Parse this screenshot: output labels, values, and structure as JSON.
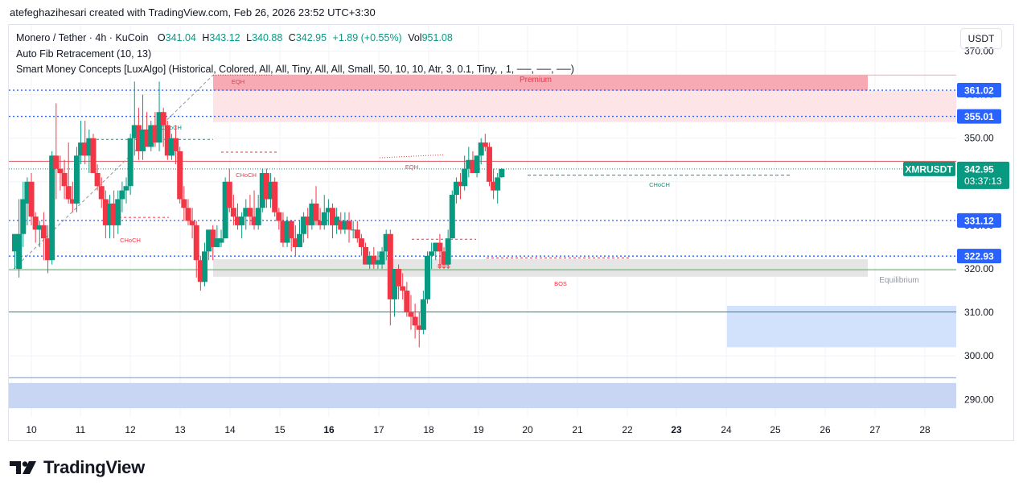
{
  "caption": "atefeghazihesari created with TradingView.com, Feb 26, 2026 23:52 UTC+3:30",
  "legend": {
    "symbol": "Monero / Tether · 4h · KuCoin",
    "o_label": "O",
    "o_value": "341.04",
    "h_label": "H",
    "h_value": "343.12",
    "l_label": "L",
    "l_value": "340.88",
    "c_label": "C",
    "c_value": "342.95",
    "change": "+1.89 (+0.55%)",
    "vol_label": "Vol",
    "vol_value": "951.08",
    "indicator1": "Auto Fib Retracement (10, 13)",
    "indicator2": "Smart Money Concepts [LuxAlgo] (Historical, Colored, All, All, Tiny, All, All, Small, 50, 10, 10, Atr, 3, 0.1, Tiny, , 1, ──, ──, ──)"
  },
  "currency": "USDT",
  "brand": "TradingView",
  "colors": {
    "up": "#089981",
    "down": "#f23645",
    "text": "#131722",
    "grid": "#f0f3fa",
    "blue": "#2962ff"
  },
  "chart_data": {
    "type": "candlestick",
    "symbol": "XMRUSDT",
    "timeframe": "4h",
    "ylim": [
      286,
      376
    ],
    "y_ticks": [
      290,
      300,
      310,
      320,
      330,
      340,
      350,
      360,
      370
    ],
    "y_tick_labels": [
      "290.00",
      "300.00",
      "310.00",
      "320.00",
      "330.00",
      "340.00",
      "350.00",
      "360.00",
      "370.00"
    ],
    "x_labels": [
      {
        "text": "10",
        "bold": false
      },
      {
        "text": "11",
        "bold": false
      },
      {
        "text": "12",
        "bold": false
      },
      {
        "text": "13",
        "bold": false
      },
      {
        "text": "14",
        "bold": false
      },
      {
        "text": "15",
        "bold": false
      },
      {
        "text": "16",
        "bold": true
      },
      {
        "text": "17",
        "bold": false
      },
      {
        "text": "18",
        "bold": false
      },
      {
        "text": "19",
        "bold": false
      },
      {
        "text": "20",
        "bold": false
      },
      {
        "text": "21",
        "bold": false
      },
      {
        "text": "22",
        "bold": false
      },
      {
        "text": "23",
        "bold": true
      },
      {
        "text": "24",
        "bold": false
      },
      {
        "text": "25",
        "bold": false
      },
      {
        "text": "26",
        "bold": false
      },
      {
        "text": "27",
        "bold": false
      },
      {
        "text": "28",
        "bold": false
      }
    ],
    "candles": [
      {
        "o": 324,
        "h": 328,
        "l": 320,
        "c": 328
      },
      {
        "o": 320,
        "h": 336,
        "l": 318,
        "c": 328
      },
      {
        "o": 328,
        "h": 340,
        "l": 325,
        "c": 336
      },
      {
        "o": 335,
        "h": 341,
        "l": 330,
        "c": 340
      },
      {
        "o": 340,
        "h": 342,
        "l": 330,
        "c": 332
      },
      {
        "o": 332,
        "h": 333,
        "l": 326,
        "c": 329
      },
      {
        "o": 329,
        "h": 331,
        "l": 325,
        "c": 330
      },
      {
        "o": 330,
        "h": 333,
        "l": 322,
        "c": 327
      },
      {
        "o": 327,
        "h": 330,
        "l": 319,
        "c": 322
      },
      {
        "o": 322,
        "h": 347,
        "l": 321,
        "c": 346
      },
      {
        "o": 346,
        "h": 358,
        "l": 336,
        "c": 343
      },
      {
        "o": 343,
        "h": 346,
        "l": 338,
        "c": 342
      },
      {
        "o": 342,
        "h": 345,
        "l": 336,
        "c": 339
      },
      {
        "o": 339,
        "h": 349,
        "l": 335,
        "c": 336
      },
      {
        "o": 336,
        "h": 340,
        "l": 333,
        "c": 335
      },
      {
        "o": 335,
        "h": 348,
        "l": 333,
        "c": 346
      },
      {
        "o": 346,
        "h": 354,
        "l": 344,
        "c": 349
      },
      {
        "o": 349,
        "h": 354,
        "l": 344,
        "c": 346
      },
      {
        "o": 346,
        "h": 352,
        "l": 342,
        "c": 350
      },
      {
        "o": 350,
        "h": 351,
        "l": 342,
        "c": 342
      },
      {
        "o": 342,
        "h": 344,
        "l": 338,
        "c": 339
      },
      {
        "o": 339,
        "h": 341,
        "l": 334,
        "c": 336
      },
      {
        "o": 336,
        "h": 338,
        "l": 327,
        "c": 330
      },
      {
        "o": 330,
        "h": 337,
        "l": 327,
        "c": 335
      },
      {
        "o": 335,
        "h": 338,
        "l": 327,
        "c": 330
      },
      {
        "o": 330,
        "h": 338,
        "l": 328,
        "c": 336
      },
      {
        "o": 336,
        "h": 340,
        "l": 333,
        "c": 338
      },
      {
        "o": 338,
        "h": 341,
        "l": 335,
        "c": 339
      },
      {
        "o": 339,
        "h": 351,
        "l": 337,
        "c": 350
      },
      {
        "o": 350,
        "h": 363,
        "l": 346,
        "c": 353
      },
      {
        "o": 353,
        "h": 357,
        "l": 345,
        "c": 347
      },
      {
        "o": 347,
        "h": 360,
        "l": 345,
        "c": 352
      },
      {
        "o": 352,
        "h": 356,
        "l": 348,
        "c": 348
      },
      {
        "o": 348,
        "h": 354,
        "l": 347,
        "c": 353
      },
      {
        "o": 353,
        "h": 356,
        "l": 348,
        "c": 349
      },
      {
        "o": 349,
        "h": 363,
        "l": 347,
        "c": 356
      },
      {
        "o": 356,
        "h": 357,
        "l": 348,
        "c": 353
      },
      {
        "o": 353,
        "h": 354,
        "l": 345,
        "c": 346
      },
      {
        "o": 346,
        "h": 351,
        "l": 345,
        "c": 350
      },
      {
        "o": 350,
        "h": 353,
        "l": 344,
        "c": 347
      },
      {
        "o": 347,
        "h": 348,
        "l": 335,
        "c": 336
      },
      {
        "o": 336,
        "h": 339,
        "l": 331,
        "c": 334
      },
      {
        "o": 334,
        "h": 336,
        "l": 330,
        "c": 331
      },
      {
        "o": 331,
        "h": 334,
        "l": 327,
        "c": 330
      },
      {
        "o": 330,
        "h": 331,
        "l": 318,
        "c": 322
      },
      {
        "o": 322,
        "h": 323,
        "l": 315,
        "c": 317
      },
      {
        "o": 317,
        "h": 326,
        "l": 316,
        "c": 324
      },
      {
        "o": 324,
        "h": 329,
        "l": 322,
        "c": 329
      },
      {
        "o": 329,
        "h": 330,
        "l": 322,
        "c": 325
      },
      {
        "o": 325,
        "h": 330,
        "l": 325,
        "c": 327
      },
      {
        "o": 326,
        "h": 329,
        "l": 325,
        "c": 327
      },
      {
        "o": 327,
        "h": 341,
        "l": 327,
        "c": 340
      },
      {
        "o": 340,
        "h": 343,
        "l": 333,
        "c": 334
      },
      {
        "o": 334,
        "h": 337,
        "l": 330,
        "c": 332
      },
      {
        "o": 332,
        "h": 335,
        "l": 329,
        "c": 330
      },
      {
        "o": 330,
        "h": 333,
        "l": 327,
        "c": 332
      },
      {
        "o": 332,
        "h": 336,
        "l": 329,
        "c": 334
      },
      {
        "o": 334,
        "h": 337,
        "l": 330,
        "c": 332
      },
      {
        "o": 332,
        "h": 338,
        "l": 329,
        "c": 330
      },
      {
        "o": 330,
        "h": 337,
        "l": 329,
        "c": 334
      },
      {
        "o": 334,
        "h": 343,
        "l": 333,
        "c": 342
      },
      {
        "o": 342,
        "h": 343,
        "l": 334,
        "c": 336
      },
      {
        "o": 336,
        "h": 342,
        "l": 334,
        "c": 340
      },
      {
        "o": 340,
        "h": 341,
        "l": 332,
        "c": 333
      },
      {
        "o": 333,
        "h": 334,
        "l": 329,
        "c": 331
      },
      {
        "o": 331,
        "h": 333,
        "l": 325,
        "c": 326
      },
      {
        "o": 326,
        "h": 332,
        "l": 325,
        "c": 331
      },
      {
        "o": 331,
        "h": 331,
        "l": 324,
        "c": 327
      },
      {
        "o": 327,
        "h": 330,
        "l": 323,
        "c": 325
      },
      {
        "o": 325,
        "h": 331,
        "l": 325,
        "c": 328
      },
      {
        "o": 328,
        "h": 333,
        "l": 326,
        "c": 332
      },
      {
        "o": 332,
        "h": 334,
        "l": 327,
        "c": 330
      },
      {
        "o": 330,
        "h": 336,
        "l": 329,
        "c": 335
      },
      {
        "o": 335,
        "h": 339,
        "l": 330,
        "c": 331
      },
      {
        "o": 331,
        "h": 334,
        "l": 329,
        "c": 330
      },
      {
        "o": 330,
        "h": 337,
        "l": 329,
        "c": 333
      },
      {
        "o": 333,
        "h": 336,
        "l": 330,
        "c": 334
      },
      {
        "o": 334,
        "h": 335,
        "l": 327,
        "c": 330
      },
      {
        "o": 330,
        "h": 334,
        "l": 328,
        "c": 332
      },
      {
        "o": 331,
        "h": 333,
        "l": 328,
        "c": 329
      },
      {
        "o": 329,
        "h": 333,
        "l": 328,
        "c": 331
      },
      {
        "o": 331,
        "h": 333,
        "l": 326,
        "c": 329
      },
      {
        "o": 329,
        "h": 331,
        "l": 327,
        "c": 329
      },
      {
        "o": 329,
        "h": 331,
        "l": 326,
        "c": 327
      },
      {
        "o": 327,
        "h": 328,
        "l": 323,
        "c": 325
      },
      {
        "o": 325,
        "h": 326,
        "l": 321,
        "c": 321
      },
      {
        "o": 321,
        "h": 324,
        "l": 320,
        "c": 323
      },
      {
        "o": 323,
        "h": 325,
        "l": 320,
        "c": 321
      },
      {
        "o": 321,
        "h": 324,
        "l": 320,
        "c": 322
      },
      {
        "o": 321,
        "h": 325,
        "l": 320,
        "c": 324
      },
      {
        "o": 324,
        "h": 329,
        "l": 322,
        "c": 328
      },
      {
        "o": 328,
        "h": 329,
        "l": 307,
        "c": 313
      },
      {
        "o": 313,
        "h": 320,
        "l": 309,
        "c": 320
      },
      {
        "o": 320,
        "h": 321,
        "l": 313,
        "c": 316
      },
      {
        "o": 316,
        "h": 319,
        "l": 313,
        "c": 315
      },
      {
        "o": 315,
        "h": 317,
        "l": 309,
        "c": 310
      },
      {
        "o": 310,
        "h": 314,
        "l": 306,
        "c": 309
      },
      {
        "o": 309,
        "h": 312,
        "l": 304,
        "c": 307
      },
      {
        "o": 307,
        "h": 310,
        "l": 302,
        "c": 306
      },
      {
        "o": 306,
        "h": 315,
        "l": 305,
        "c": 313
      },
      {
        "o": 313,
        "h": 324,
        "l": 312,
        "c": 323
      },
      {
        "o": 323,
        "h": 326,
        "l": 320,
        "c": 324
      },
      {
        "o": 324,
        "h": 326,
        "l": 322,
        "c": 326
      },
      {
        "o": 326,
        "h": 328,
        "l": 320,
        "c": 324
      },
      {
        "o": 324,
        "h": 325,
        "l": 320,
        "c": 321
      },
      {
        "o": 321,
        "h": 329,
        "l": 320,
        "c": 327
      },
      {
        "o": 327,
        "h": 338,
        "l": 327,
        "c": 337
      },
      {
        "o": 337,
        "h": 341,
        "l": 335,
        "c": 340
      },
      {
        "o": 340,
        "h": 342,
        "l": 336,
        "c": 339
      },
      {
        "o": 339,
        "h": 346,
        "l": 338,
        "c": 343
      },
      {
        "o": 343,
        "h": 348,
        "l": 341,
        "c": 345
      },
      {
        "o": 345,
        "h": 347,
        "l": 342,
        "c": 342
      },
      {
        "o": 342,
        "h": 346,
        "l": 341,
        "c": 346
      },
      {
        "o": 346,
        "h": 350,
        "l": 344,
        "c": 349
      },
      {
        "o": 349,
        "h": 351,
        "l": 347,
        "c": 348
      },
      {
        "o": 348,
        "h": 349,
        "l": 339,
        "c": 340
      },
      {
        "o": 340,
        "h": 343,
        "l": 336,
        "c": 338
      },
      {
        "o": 338,
        "h": 342,
        "l": 335,
        "c": 341
      },
      {
        "o": 341.04,
        "h": 343.12,
        "l": 340.88,
        "c": 342.95
      }
    ],
    "zones": [
      {
        "name": "premium-upper",
        "y0": 360.9,
        "y1": 364.5,
        "color": "#f7a9b4",
        "label": "Premium"
      },
      {
        "name": "premium-lower",
        "y0": 353.7,
        "y1": 360.9,
        "color": "#fce4e7"
      },
      {
        "name": "equilibrium",
        "y0": 318.2,
        "y1": 322.2,
        "color": "#e5e5e5",
        "label": "Equilibrium"
      },
      {
        "name": "discount",
        "y0": 302,
        "y1": 311.5,
        "color": "#d2e2fc"
      },
      {
        "name": "lower-blue",
        "y0": 288,
        "y1": 293.8,
        "color": "#c9d6f3"
      }
    ],
    "levels": [
      {
        "value": 361.02,
        "label": "361.02",
        "color": "#2962ff"
      },
      {
        "value": 355.01,
        "label": "355.01",
        "color": "#2962ff"
      },
      {
        "value": 331.12,
        "label": "331.12",
        "color": "#2962ff"
      },
      {
        "value": 322.93,
        "label": "322.93",
        "color": "#2962ff"
      }
    ],
    "last_price": {
      "value": 342.95,
      "label": "342.95",
      "countdown": "03:37:13",
      "symbol": "XMRUSDT"
    },
    "annotations": {
      "eqh": "EQH",
      "choch": "CHoCH",
      "bos": "BOS",
      "premium": "Premium",
      "equilibrium": "Equilibrium"
    }
  }
}
